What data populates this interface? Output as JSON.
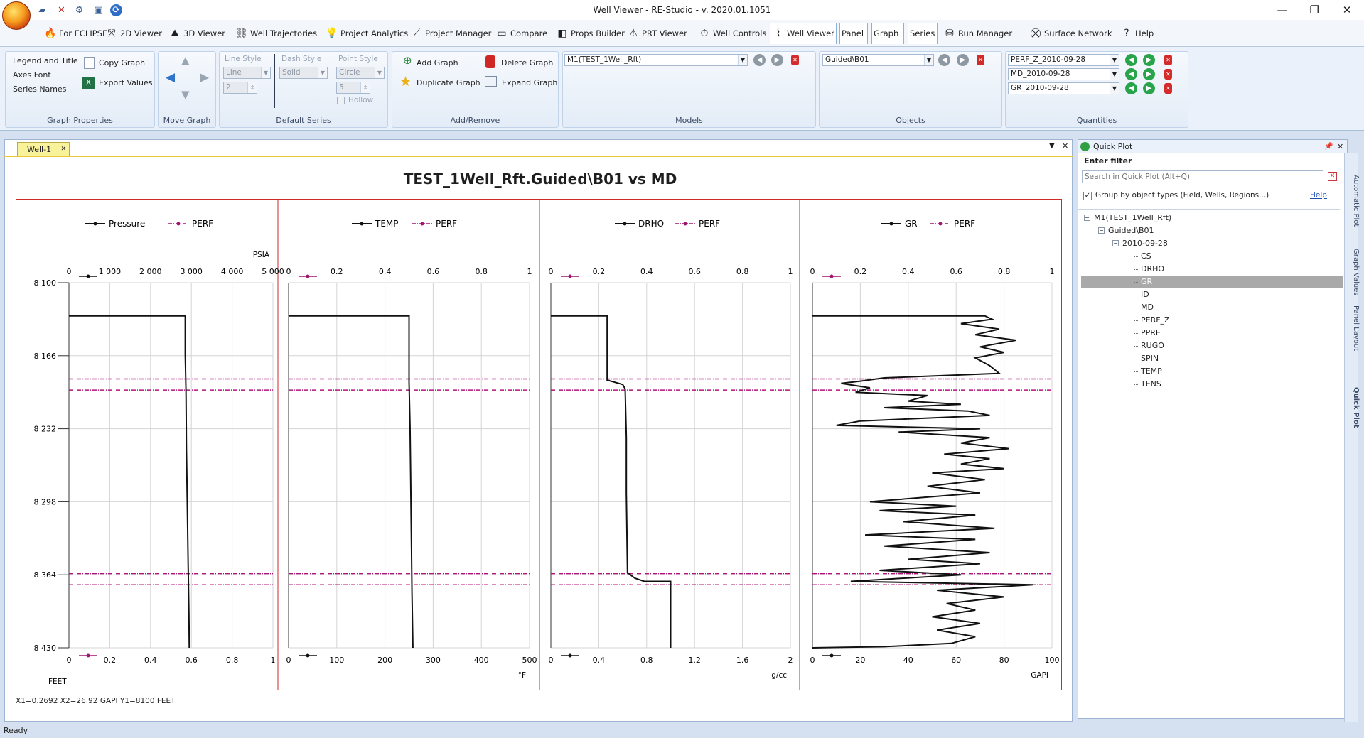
{
  "window": {
    "title": "Well Viewer - RE-Studio - v. 2020.01.1051"
  },
  "tabs": [
    {
      "label": "For ECLIPSE",
      "icon": "flame-icon"
    },
    {
      "label": "2D Viewer",
      "icon": "2d-viewer-icon"
    },
    {
      "label": "3D Viewer",
      "icon": "3d-viewer-icon"
    },
    {
      "label": "Well Trajectories",
      "icon": "well-trajectory-icon"
    },
    {
      "label": "Project Analytics",
      "icon": "analytics-icon"
    },
    {
      "label": "Project Manager",
      "icon": "project-manager-icon"
    },
    {
      "label": "Compare",
      "icon": "compare-icon"
    },
    {
      "label": "Props Builder",
      "icon": "props-builder-icon"
    },
    {
      "label": "PRT Viewer",
      "icon": "prt-viewer-icon"
    },
    {
      "label": "Well Controls",
      "icon": "well-controls-icon"
    },
    {
      "label": "Well Viewer",
      "icon": "well-viewer-icon"
    },
    {
      "label": "Panel",
      "icon": ""
    },
    {
      "label": "Graph",
      "icon": ""
    },
    {
      "label": "Series",
      "icon": ""
    },
    {
      "label": "Run Manager",
      "icon": "run-manager-icon"
    },
    {
      "label": "Surface Network",
      "icon": "surface-network-icon"
    },
    {
      "label": "Help",
      "icon": "help-icon"
    }
  ],
  "ribbon": {
    "graph_properties": {
      "label": "Graph Properties",
      "legend_title": "Legend and Title",
      "axes_font": "Axes Font",
      "series_names": "Series Names",
      "copy_graph": "Copy Graph",
      "export_values": "Export Values"
    },
    "move_graph": {
      "label": "Move Graph"
    },
    "default_series": {
      "label": "Default Series",
      "line_style_label": "Line Style",
      "line_style_value": "Line",
      "line_width": "2",
      "dash_style_label": "Dash Style",
      "dash_style_value": "Solid",
      "point_style_label": "Point Style",
      "point_style_value": "Circle",
      "point_size": "5",
      "hollow": "Hollow"
    },
    "add_remove": {
      "label": "Add/Remove",
      "add_graph": "Add Graph",
      "delete_graph": "Delete Graph",
      "duplicate_graph": "Duplicate Graph",
      "expand_graph": "Expand Graph"
    },
    "models": {
      "label": "Models",
      "value": "M1(TEST_1Well_Rft)"
    },
    "objects": {
      "label": "Objects",
      "value": "Guided\\B01"
    },
    "quantities": {
      "label": "Quantities",
      "values": [
        "PERF_Z_2010-09-28",
        "MD_2010-09-28",
        "GR_2010-09-28"
      ]
    }
  },
  "document": {
    "tab_label": "Well-1",
    "coordinates": "X1=0.2692   X2=26.92 GAPI  Y1=8100 FEET"
  },
  "chart_data": {
    "type": "line",
    "title": "TEST_1Well_Rft.Guided\\B01 vs MD",
    "y_axis": {
      "label": "FEET",
      "range": [
        8100,
        8430
      ],
      "ticks": [
        "8 100",
        "8 166",
        "8 232",
        "8 298",
        "8 364",
        "8 430"
      ],
      "inverted": true
    },
    "perf_intervals_ft": [
      8187,
      8197,
      8363,
      8373
    ],
    "tracks": [
      {
        "legend": [
          "Pressure",
          "PERF"
        ],
        "top_axis": {
          "range": [
            0,
            5000
          ],
          "ticks": [
            "0",
            "1 000",
            "2 000",
            "3 000",
            "4 000",
            "5 000"
          ],
          "unit": "PSIA"
        },
        "bottom_axis": {
          "range": [
            0,
            1
          ],
          "ticks": [
            "0",
            "0.2",
            "0.4",
            "0.6",
            "0.8",
            "1"
          ],
          "unit": ""
        },
        "series": {
          "name": "Pressure",
          "axis": "top",
          "points": [
            [
              0,
              8130
            ],
            [
              2850,
              8130
            ],
            [
              2850,
              8165
            ],
            [
              2870,
              8200
            ],
            [
              2880,
              8250
            ],
            [
              2900,
              8300
            ],
            [
              2920,
              8350
            ],
            [
              2940,
              8400
            ],
            [
              2950,
              8430
            ]
          ]
        }
      },
      {
        "legend": [
          "TEMP",
          "PERF"
        ],
        "top_axis": {
          "range": [
            0,
            1
          ],
          "ticks": [
            "0",
            "0.2",
            "0.4",
            "0.6",
            "0.8",
            "1"
          ],
          "unit": ""
        },
        "bottom_axis": {
          "range": [
            0,
            500
          ],
          "ticks": [
            "0",
            "100",
            "200",
            "300",
            "400",
            "500"
          ],
          "unit": "°F"
        },
        "series": {
          "name": "TEMP",
          "axis": "bottom",
          "points": [
            [
              0,
              8130
            ],
            [
              250,
              8130
            ],
            [
              250,
              8190
            ],
            [
              252,
              8230
            ],
            [
              254,
              8300
            ],
            [
              256,
              8380
            ],
            [
              258,
              8430
            ]
          ]
        }
      },
      {
        "legend": [
          "DRHO",
          "PERF"
        ],
        "top_axis": {
          "range": [
            0,
            1
          ],
          "ticks": [
            "0",
            "0.2",
            "0.4",
            "0.6",
            "0.8",
            "1"
          ],
          "unit": ""
        },
        "bottom_axis": {
          "range": [
            0,
            2
          ],
          "ticks": [
            "0",
            "0.4",
            "0.8",
            "1.2",
            "1.6",
            "2"
          ],
          "unit": "g/cc"
        },
        "series": {
          "name": "DRHO",
          "axis": "bottom",
          "points": [
            [
              0,
              8130
            ],
            [
              0.47,
              8130
            ],
            [
              0.47,
              8188
            ],
            [
              0.6,
              8192
            ],
            [
              0.62,
              8196
            ],
            [
              0.63,
              8240
            ],
            [
              0.63,
              8290
            ],
            [
              0.64,
              8362
            ],
            [
              0.7,
              8367
            ],
            [
              0.78,
              8370
            ],
            [
              1.0,
              8370
            ],
            [
              1.0,
              8430
            ]
          ]
        }
      },
      {
        "legend": [
          "GR",
          "PERF"
        ],
        "top_axis": {
          "range": [
            0,
            1
          ],
          "ticks": [
            "0",
            "0.2",
            "0.4",
            "0.6",
            "0.8",
            "1"
          ],
          "unit": ""
        },
        "bottom_axis": {
          "range": [
            0,
            100
          ],
          "ticks": [
            "0",
            "20",
            "40",
            "60",
            "80",
            "100"
          ],
          "unit": "GAPI"
        },
        "series": {
          "name": "GR",
          "axis": "bottom",
          "points": [
            [
              0,
              8130
            ],
            [
              72,
              8130
            ],
            [
              75,
              8133
            ],
            [
              62,
              8137
            ],
            [
              78,
              8142
            ],
            [
              68,
              8147
            ],
            [
              85,
              8152
            ],
            [
              70,
              8158
            ],
            [
              80,
              8163
            ],
            [
              68,
              8168
            ],
            [
              74,
              8175
            ],
            [
              78,
              8182
            ],
            [
              30,
              8186
            ],
            [
              20,
              8189
            ],
            [
              12,
              8191
            ],
            [
              24,
              8195
            ],
            [
              18,
              8199
            ],
            [
              48,
              8202
            ],
            [
              40,
              8207
            ],
            [
              62,
              8210
            ],
            [
              30,
              8213
            ],
            [
              65,
              8216
            ],
            [
              74,
              8220
            ],
            [
              20,
              8225
            ],
            [
              10,
              8229
            ],
            [
              70,
              8232
            ],
            [
              36,
              8235
            ],
            [
              74,
              8240
            ],
            [
              62,
              8245
            ],
            [
              82,
              8250
            ],
            [
              55,
              8255
            ],
            [
              74,
              8259
            ],
            [
              62,
              8264
            ],
            [
              80,
              8268
            ],
            [
              50,
              8272
            ],
            [
              72,
              8278
            ],
            [
              48,
              8284
            ],
            [
              70,
              8290
            ],
            [
              24,
              8298
            ],
            [
              60,
              8302
            ],
            [
              28,
              8306
            ],
            [
              68,
              8310
            ],
            [
              38,
              8316
            ],
            [
              76,
              8322
            ],
            [
              22,
              8328
            ],
            [
              68,
              8332
            ],
            [
              30,
              8338
            ],
            [
              74,
              8344
            ],
            [
              40,
              8350
            ],
            [
              70,
              8354
            ],
            [
              28,
              8360
            ],
            [
              62,
              8364
            ],
            [
              16,
              8370
            ],
            [
              92,
              8373
            ],
            [
              52,
              8378
            ],
            [
              80,
              8384
            ],
            [
              56,
              8390
            ],
            [
              68,
              8396
            ],
            [
              50,
              8402
            ],
            [
              70,
              8408
            ],
            [
              52,
              8414
            ],
            [
              68,
              8420
            ],
            [
              58,
              8426
            ],
            [
              30,
              8429
            ],
            [
              0,
              8430
            ]
          ]
        }
      }
    ]
  },
  "quick_plot": {
    "title": "Quick Plot",
    "filter_label": "Enter filter",
    "search_placeholder": "Search in Quick Plot (Alt+Q)",
    "group_checkbox": "Group by object types (Field, Wells, Regions...)",
    "help_link": "Help",
    "side_tabs": [
      "Automatic Plot",
      "Graph Values",
      "Panel Layout",
      "Quick Plot"
    ],
    "tree": {
      "root": "M1(TEST_1Well_Rft)",
      "object": "Guided\\B01",
      "date": "2010-09-28",
      "quantities": [
        "CS",
        "DRHO",
        "GR",
        "ID",
        "MD",
        "PERF_Z",
        "PPRE",
        "RUGO",
        "SPIN",
        "TEMP",
        "TENS"
      ],
      "selected": "GR"
    }
  },
  "status": {
    "text": "Ready"
  }
}
